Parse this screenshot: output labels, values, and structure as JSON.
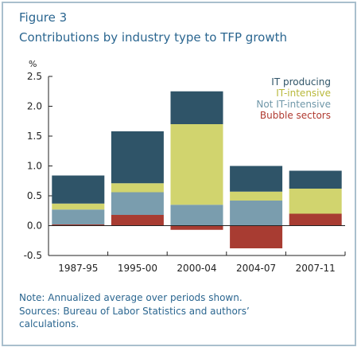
{
  "figure_label": "Figure 3",
  "title": "Contributions by industry type to TFP growth",
  "ylabel_unit": "%",
  "notes": [
    "Note: Annualized average over periods shown.",
    "Sources: Bureau of Labor Statistics and authors’",
    "calculations."
  ],
  "chart_data": {
    "type": "bar",
    "stacked": true,
    "title": "Contributions by industry type to TFP growth",
    "ylabel": "%",
    "xlabel": "",
    "ylim": [
      -0.5,
      2.5
    ],
    "yticks": [
      -0.5,
      0.0,
      0.5,
      1.0,
      1.5,
      2.0,
      2.5
    ],
    "ytick_labels": [
      "-0.5",
      "0.0",
      "0.5",
      "1.0",
      "1.5",
      "2.0",
      "2.5"
    ],
    "grid": false,
    "legend_placement": "top-right",
    "categories": [
      "1987-95",
      "1995-00",
      "2000-04",
      "2004-07",
      "2007-11"
    ],
    "series": [
      {
        "name": "Bubble sectors",
        "color": "#a83c32",
        "values": [
          0.02,
          0.18,
          -0.07,
          -0.38,
          0.2
        ]
      },
      {
        "name": "Not IT-intensive",
        "color": "#7a9dae",
        "values": [
          0.25,
          0.38,
          0.35,
          0.42,
          0.0
        ]
      },
      {
        "name": "IT-intensive",
        "color": "#d1d46e",
        "values": [
          0.1,
          0.15,
          1.35,
          0.15,
          0.42
        ]
      },
      {
        "name": "IT producing",
        "color": "#2f5468",
        "values": [
          0.47,
          0.87,
          0.55,
          0.43,
          0.3
        ]
      }
    ],
    "legend": [
      {
        "name": "IT producing",
        "color": "#2f5468"
      },
      {
        "name": "IT-intensive",
        "color": "#b8b83a"
      },
      {
        "name": "Not IT-intensive",
        "color": "#6f97a8"
      },
      {
        "name": "Bubble sectors",
        "color": "#b03a30"
      }
    ]
  }
}
